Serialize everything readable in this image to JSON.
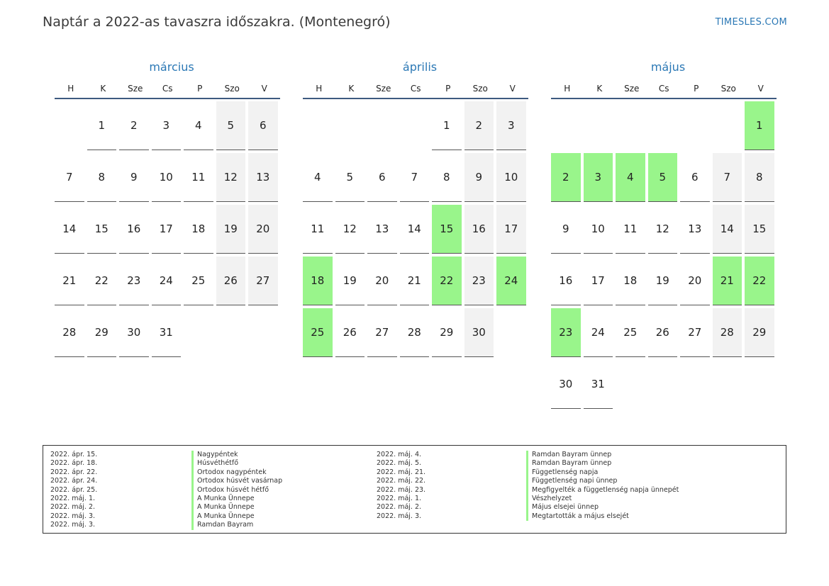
{
  "title": "Naptár a 2022-as tavaszra időszakra. (Montenegró)",
  "brand": "TIMESLES.COM",
  "weekday_headers": [
    "H",
    "K",
    "Sze",
    "Cs",
    "P",
    "Szo",
    "V"
  ],
  "colors": {
    "accent": "#2b78b5",
    "holiday": "#99f58b",
    "weekend": "#f2f2f2",
    "header_rule": "#3d5a80"
  },
  "months": [
    {
      "name": "március",
      "offset": 1,
      "days": 31,
      "holidays": []
    },
    {
      "name": "április",
      "offset": 4,
      "days": 30,
      "holidays": [
        15,
        18,
        22,
        24,
        25
      ]
    },
    {
      "name": "május",
      "offset": 6,
      "days": 31,
      "holidays": [
        1,
        2,
        3,
        4,
        5,
        21,
        22,
        23
      ]
    }
  ],
  "legend": {
    "left": [
      {
        "date": "2022. ápr. 15.",
        "name": "Nagypéntek"
      },
      {
        "date": "2022. ápr. 18.",
        "name": "Húsvéthétfő"
      },
      {
        "date": "2022. ápr. 22.",
        "name": "Ortodox nagypéntek"
      },
      {
        "date": "2022. ápr. 24.",
        "name": "Ortodox húsvét vasárnap"
      },
      {
        "date": "2022. ápr. 25.",
        "name": "Ortodox húsvét hétfő"
      },
      {
        "date": "2022. máj. 1.",
        "name": "A Munka Ünnepe"
      },
      {
        "date": "2022. máj. 2.",
        "name": "A Munka Ünnepe"
      },
      {
        "date": "2022. máj. 3.",
        "name": "A Munka Ünnepe"
      },
      {
        "date": "2022. máj. 3.",
        "name": "Ramdan Bayram"
      }
    ],
    "right": [
      {
        "date": "2022. máj. 4.",
        "name": "Ramdan Bayram ünnep"
      },
      {
        "date": "2022. máj. 5.",
        "name": "Ramdan Bayram ünnep"
      },
      {
        "date": "2022. máj. 21.",
        "name": "Függetlenség napja"
      },
      {
        "date": "2022. máj. 22.",
        "name": "Függetlenség napi ünnep"
      },
      {
        "date": "2022. máj. 23.",
        "name": "Megfigyelték a függetlenség napja ünnepét"
      },
      {
        "date": "2022. máj. 1.",
        "name": "Vészhelyzet"
      },
      {
        "date": "2022. máj. 2.",
        "name": "Május elsejei ünnep"
      },
      {
        "date": "2022. máj. 3.",
        "name": "Megtartották a május elsejét"
      }
    ]
  }
}
